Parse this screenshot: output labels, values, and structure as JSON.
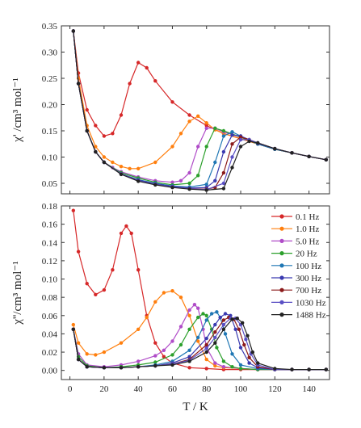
{
  "chart_data": [
    {
      "type": "line",
      "panel": "top",
      "ylabel": "χ' /cm³ mol⁻¹",
      "xlabel": "",
      "xlim": [
        -5,
        152
      ],
      "ylim": [
        0.03,
        0.35
      ],
      "yticks": [
        "0.05",
        "0.10",
        "0.15",
        "0.20",
        "0.25",
        "0.30",
        "0.35"
      ],
      "ytick_values": [
        0.05,
        0.1,
        0.15,
        0.2,
        0.25,
        0.3,
        0.35
      ],
      "series": [
        {
          "name": "0.1 Hz",
          "color": "#d62728",
          "x": [
            2,
            5,
            10,
            15,
            20,
            25,
            30,
            35,
            40,
            45,
            50,
            60,
            70,
            80,
            90,
            100,
            110,
            120,
            130,
            140,
            150
          ],
          "y": [
            0.34,
            0.26,
            0.19,
            0.16,
            0.14,
            0.145,
            0.18,
            0.24,
            0.28,
            0.27,
            0.245,
            0.205,
            0.18,
            0.16,
            0.145,
            0.135,
            0.125,
            0.115,
            0.108,
            0.101,
            0.095
          ]
        },
        {
          "name": "1.0 Hz",
          "color": "#ff7f0e",
          "x": [
            2,
            5,
            10,
            15,
            20,
            25,
            30,
            35,
            40,
            50,
            60,
            65,
            70,
            75,
            80,
            85,
            90,
            100,
            110,
            120,
            130,
            140,
            150
          ],
          "y": [
            0.34,
            0.25,
            0.16,
            0.12,
            0.1,
            0.09,
            0.082,
            0.078,
            0.078,
            0.09,
            0.12,
            0.145,
            0.168,
            0.178,
            0.165,
            0.152,
            0.145,
            0.135,
            0.125,
            0.115,
            0.108,
            0.101,
            0.095
          ]
        },
        {
          "name": "5.0 Hz",
          "color": "#b04cc8",
          "x": [
            2,
            5,
            10,
            15,
            20,
            25,
            30,
            40,
            50,
            60,
            65,
            70,
            75,
            80,
            85,
            90,
            100,
            110,
            120,
            130,
            140,
            150
          ],
          "y": [
            0.34,
            0.24,
            0.15,
            0.11,
            0.09,
            0.08,
            0.072,
            0.062,
            0.055,
            0.052,
            0.055,
            0.07,
            0.12,
            0.155,
            0.155,
            0.148,
            0.138,
            0.125,
            0.115,
            0.108,
            0.101,
            0.095
          ]
        },
        {
          "name": "20 Hz",
          "color": "#2ca02c",
          "x": [
            2,
            5,
            10,
            15,
            20,
            30,
            40,
            50,
            60,
            70,
            75,
            80,
            85,
            90,
            100,
            110,
            120,
            130,
            140,
            150
          ],
          "y": [
            0.34,
            0.24,
            0.15,
            0.11,
            0.09,
            0.07,
            0.06,
            0.052,
            0.047,
            0.05,
            0.065,
            0.12,
            0.155,
            0.15,
            0.138,
            0.125,
            0.115,
            0.108,
            0.101,
            0.095
          ]
        },
        {
          "name": "100 Hz",
          "color": "#1f77b4",
          "x": [
            2,
            5,
            10,
            15,
            20,
            30,
            40,
            50,
            60,
            70,
            80,
            85,
            90,
            95,
            100,
            110,
            120,
            130,
            140,
            150
          ],
          "y": [
            0.34,
            0.24,
            0.15,
            0.11,
            0.09,
            0.068,
            0.057,
            0.05,
            0.045,
            0.043,
            0.048,
            0.09,
            0.14,
            0.148,
            0.14,
            0.125,
            0.115,
            0.108,
            0.101,
            0.095
          ]
        },
        {
          "name": "300 Hz",
          "color": "#3a3ab0",
          "x": [
            2,
            5,
            10,
            15,
            20,
            30,
            40,
            50,
            60,
            70,
            80,
            85,
            90,
            95,
            100,
            110,
            120,
            130,
            140,
            150
          ],
          "y": [
            0.34,
            0.24,
            0.15,
            0.11,
            0.09,
            0.068,
            0.056,
            0.049,
            0.044,
            0.041,
            0.042,
            0.055,
            0.11,
            0.142,
            0.14,
            0.126,
            0.116,
            0.108,
            0.101,
            0.095
          ]
        },
        {
          "name": "700 Hz",
          "color": "#8b1a1a",
          "x": [
            2,
            5,
            10,
            15,
            20,
            30,
            40,
            50,
            60,
            70,
            80,
            85,
            90,
            95,
            100,
            105,
            110,
            120,
            130,
            140,
            150
          ],
          "y": [
            0.34,
            0.24,
            0.15,
            0.11,
            0.09,
            0.068,
            0.055,
            0.048,
            0.043,
            0.04,
            0.039,
            0.042,
            0.07,
            0.125,
            0.138,
            0.133,
            0.127,
            0.116,
            0.108,
            0.101,
            0.095
          ]
        },
        {
          "name": "1030 Hz",
          "color": "#5a4fc4",
          "x": [
            2,
            5,
            10,
            15,
            20,
            30,
            40,
            50,
            60,
            70,
            80,
            90,
            95,
            100,
            105,
            110,
            120,
            130,
            140,
            150
          ],
          "y": [
            0.34,
            0.24,
            0.15,
            0.11,
            0.09,
            0.068,
            0.055,
            0.048,
            0.043,
            0.04,
            0.038,
            0.05,
            0.1,
            0.133,
            0.133,
            0.127,
            0.116,
            0.108,
            0.101,
            0.095
          ]
        },
        {
          "name": "1488 Hz",
          "color": "#222222",
          "x": [
            2,
            5,
            10,
            15,
            20,
            30,
            40,
            50,
            60,
            70,
            80,
            90,
            95,
            100,
            105,
            110,
            120,
            130,
            140,
            150
          ],
          "y": [
            0.34,
            0.24,
            0.15,
            0.11,
            0.09,
            0.067,
            0.054,
            0.047,
            0.042,
            0.039,
            0.037,
            0.04,
            0.08,
            0.12,
            0.13,
            0.127,
            0.116,
            0.108,
            0.101,
            0.095
          ]
        }
      ]
    },
    {
      "type": "line",
      "panel": "bottom",
      "ylabel": "χ''/cm³ mol⁻¹",
      "xlabel": "T / K",
      "xlim": [
        -5,
        152
      ],
      "ylim": [
        -0.01,
        0.18
      ],
      "xticks": [
        "0",
        "20",
        "40",
        "60",
        "80",
        "100",
        "120",
        "140"
      ],
      "xtick_values": [
        0,
        20,
        40,
        60,
        80,
        100,
        120,
        140
      ],
      "yticks": [
        "0.00",
        "0.02",
        "0.04",
        "0.06",
        "0.08",
        "0.10",
        "0.12",
        "0.14",
        "0.16",
        "0.18"
      ],
      "ytick_values": [
        0.0,
        0.02,
        0.04,
        0.06,
        0.08,
        0.1,
        0.12,
        0.14,
        0.16,
        0.18
      ],
      "legend": {
        "placement": "top-right"
      },
      "series": [
        {
          "name": "0.1 Hz",
          "color": "#d62728",
          "x": [
            2,
            5,
            10,
            15,
            20,
            25,
            30,
            33,
            36,
            40,
            45,
            50,
            55,
            60,
            70,
            80,
            90,
            100,
            110,
            120,
            130,
            140,
            150
          ],
          "y": [
            0.175,
            0.13,
            0.095,
            0.083,
            0.088,
            0.11,
            0.15,
            0.158,
            0.15,
            0.11,
            0.06,
            0.03,
            0.015,
            0.008,
            0.003,
            0.002,
            0.001,
            0.001,
            0.001,
            0.001,
            0.001,
            0.001,
            0.001
          ]
        },
        {
          "name": "1.0 Hz",
          "color": "#ff7f0e",
          "x": [
            2,
            5,
            10,
            15,
            20,
            30,
            40,
            45,
            50,
            55,
            60,
            65,
            70,
            75,
            80,
            85,
            90,
            100,
            110,
            120,
            130,
            140,
            150
          ],
          "y": [
            0.05,
            0.03,
            0.018,
            0.017,
            0.02,
            0.03,
            0.045,
            0.058,
            0.075,
            0.085,
            0.087,
            0.08,
            0.06,
            0.032,
            0.012,
            0.005,
            0.003,
            0.002,
            0.001,
            0.001,
            0.001,
            0.001,
            0.001
          ]
        },
        {
          "name": "5.0 Hz",
          "color": "#b04cc8",
          "x": [
            2,
            5,
            10,
            20,
            30,
            40,
            50,
            55,
            60,
            65,
            70,
            73,
            75,
            78,
            80,
            85,
            90,
            100,
            110,
            120,
            130,
            140,
            150
          ],
          "y": [
            0.045,
            0.018,
            0.006,
            0.004,
            0.006,
            0.01,
            0.016,
            0.022,
            0.032,
            0.048,
            0.066,
            0.072,
            0.068,
            0.045,
            0.025,
            0.008,
            0.004,
            0.002,
            0.001,
            0.001,
            0.001,
            0.001,
            0.001
          ]
        },
        {
          "name": "20 Hz",
          "color": "#2ca02c",
          "x": [
            2,
            5,
            10,
            20,
            30,
            40,
            50,
            60,
            65,
            70,
            75,
            78,
            80,
            83,
            86,
            90,
            95,
            100,
            110,
            120,
            130,
            140,
            150
          ],
          "y": [
            0.045,
            0.015,
            0.005,
            0.003,
            0.004,
            0.006,
            0.009,
            0.017,
            0.028,
            0.045,
            0.058,
            0.062,
            0.06,
            0.045,
            0.025,
            0.01,
            0.004,
            0.002,
            0.001,
            0.001,
            0.001,
            0.001,
            0.001
          ]
        },
        {
          "name": "100 Hz",
          "color": "#1f77b4",
          "x": [
            2,
            5,
            10,
            20,
            30,
            40,
            50,
            60,
            70,
            75,
            80,
            83,
            86,
            88,
            91,
            95,
            100,
            110,
            120,
            130,
            140,
            150
          ],
          "y": [
            0.045,
            0.012,
            0.004,
            0.003,
            0.003,
            0.004,
            0.006,
            0.01,
            0.022,
            0.036,
            0.055,
            0.062,
            0.064,
            0.058,
            0.04,
            0.018,
            0.006,
            0.002,
            0.001,
            0.001,
            0.001,
            0.001
          ]
        },
        {
          "name": "300 Hz",
          "color": "#3a3ab0",
          "x": [
            2,
            5,
            10,
            20,
            30,
            40,
            50,
            60,
            70,
            80,
            85,
            88,
            91,
            94,
            97,
            100,
            105,
            110,
            120,
            130,
            140,
            150
          ],
          "y": [
            0.045,
            0.012,
            0.004,
            0.003,
            0.003,
            0.004,
            0.005,
            0.008,
            0.015,
            0.035,
            0.05,
            0.058,
            0.062,
            0.06,
            0.045,
            0.025,
            0.008,
            0.003,
            0.001,
            0.001,
            0.001,
            0.001
          ]
        },
        {
          "name": "700 Hz",
          "color": "#8b1a1a",
          "x": [
            2,
            5,
            10,
            20,
            30,
            40,
            50,
            60,
            70,
            80,
            85,
            90,
            93,
            96,
            99,
            102,
            105,
            110,
            120,
            130,
            140,
            150
          ],
          "y": [
            0.045,
            0.012,
            0.004,
            0.003,
            0.003,
            0.004,
            0.005,
            0.007,
            0.012,
            0.028,
            0.042,
            0.055,
            0.058,
            0.056,
            0.045,
            0.028,
            0.014,
            0.004,
            0.001,
            0.001,
            0.001,
            0.001
          ]
        },
        {
          "name": "1030 Hz",
          "color": "#5a4fc4",
          "x": [
            2,
            5,
            10,
            20,
            30,
            40,
            50,
            60,
            70,
            80,
            85,
            90,
            94,
            97,
            100,
            103,
            106,
            110,
            120,
            130,
            140,
            150
          ],
          "y": [
            0.045,
            0.012,
            0.004,
            0.003,
            0.003,
            0.004,
            0.005,
            0.007,
            0.011,
            0.024,
            0.036,
            0.05,
            0.057,
            0.057,
            0.05,
            0.034,
            0.018,
            0.006,
            0.001,
            0.001,
            0.001,
            0.001
          ]
        },
        {
          "name": "1488 Hz",
          "color": "#222222",
          "x": [
            2,
            5,
            10,
            20,
            30,
            40,
            50,
            60,
            70,
            80,
            85,
            90,
            95,
            98,
            101,
            104,
            107,
            110,
            120,
            130,
            140,
            150
          ],
          "y": [
            0.045,
            0.012,
            0.004,
            0.003,
            0.003,
            0.004,
            0.005,
            0.006,
            0.01,
            0.02,
            0.03,
            0.045,
            0.056,
            0.057,
            0.052,
            0.038,
            0.02,
            0.008,
            0.002,
            0.001,
            0.001,
            0.001
          ]
        }
      ]
    }
  ]
}
